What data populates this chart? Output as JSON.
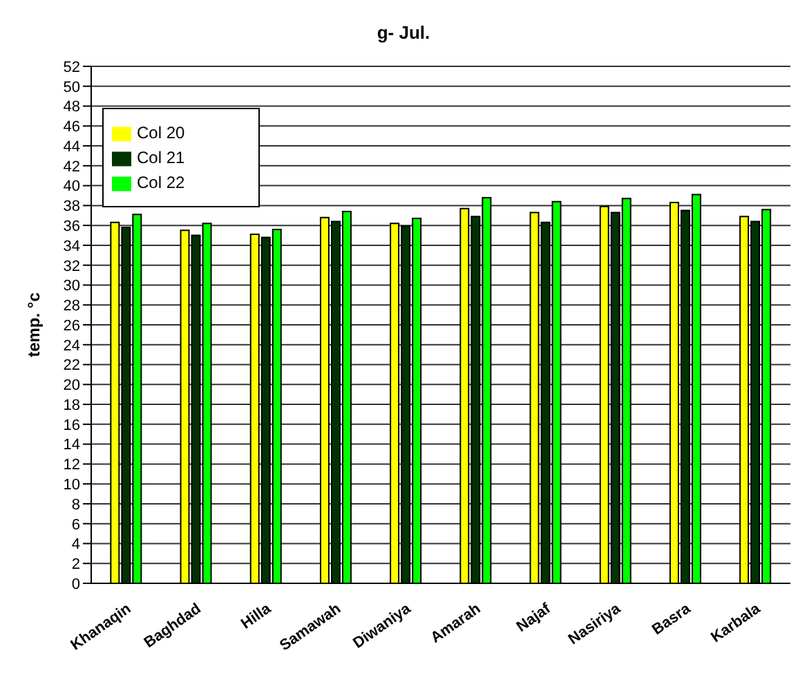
{
  "chart_data": {
    "type": "bar",
    "title": "g- Jul.",
    "ylabel": "temp. °c",
    "categories": [
      "Khanaqin",
      "Baghdad",
      "Hilla",
      "Samawah",
      "Diwaniya",
      "Amarah",
      "Najaf",
      "Nasiriya",
      "Basra",
      "Karbala"
    ],
    "series": [
      {
        "name": "Col 20",
        "color": "#ffff00",
        "values": [
          36.3,
          35.5,
          35.1,
          36.8,
          36.2,
          37.7,
          37.3,
          37.9,
          38.3,
          36.9
        ]
      },
      {
        "name": "Col 21",
        "color": "#003300",
        "values": [
          35.8,
          35.0,
          34.8,
          36.4,
          35.9,
          36.9,
          36.3,
          37.3,
          37.5,
          36.4
        ]
      },
      {
        "name": "Col 22",
        "color": "#00ff00",
        "values": [
          37.1,
          36.2,
          35.6,
          37.4,
          36.7,
          38.8,
          38.4,
          38.7,
          39.1,
          37.6
        ]
      }
    ],
    "ylim": [
      0,
      52
    ],
    "yticks": [
      0,
      2,
      4,
      6,
      8,
      10,
      12,
      14,
      16,
      18,
      20,
      22,
      24,
      26,
      28,
      30,
      32,
      34,
      36,
      38,
      40,
      42,
      44,
      46,
      48,
      50,
      52
    ],
    "grid": "y",
    "legend": "top left"
  }
}
